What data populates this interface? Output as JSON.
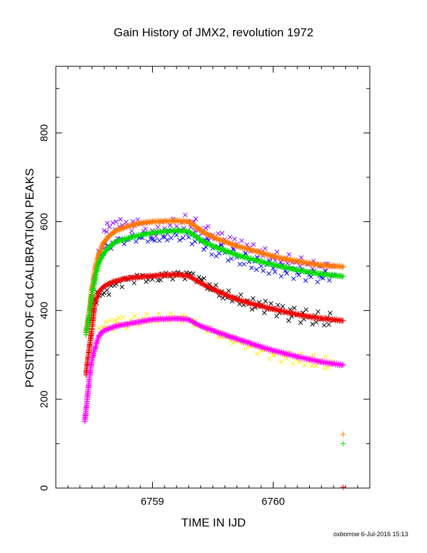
{
  "chart_data": {
    "type": "scatter",
    "title": "Gain History of JMX2, revolution 1972",
    "xlabel": "TIME IN IJD",
    "ylabel": "POSITION OF Cd CALIBRATION PEAKS",
    "xlim": [
      6758.2,
      6760.8
    ],
    "ylim": [
      0,
      950
    ],
    "x_ticks": [
      6759,
      6760
    ],
    "y_ticks": [
      0,
      200,
      400,
      600,
      800
    ],
    "grid": false,
    "legend": "none",
    "footer": "oxborrow  6-Jul-2016 15:13",
    "series": [
      {
        "color": "#ff7700",
        "marker": "plus",
        "style": "dense",
        "points": [
          [
            6758.45,
            350
          ],
          [
            6758.48,
            400
          ],
          [
            6758.5,
            450
          ],
          [
            6758.53,
            500
          ],
          [
            6758.56,
            530
          ],
          [
            6758.6,
            555
          ],
          [
            6758.65,
            570
          ],
          [
            6758.7,
            580
          ],
          [
            6758.8,
            590
          ],
          [
            6758.9,
            597
          ],
          [
            6759.0,
            600
          ],
          [
            6759.1,
            601
          ],
          [
            6759.2,
            602
          ],
          [
            6759.3,
            600
          ],
          [
            6759.35,
            590
          ],
          [
            6759.4,
            580
          ],
          [
            6759.5,
            565
          ],
          [
            6759.6,
            555
          ],
          [
            6759.7,
            545
          ],
          [
            6759.8,
            538
          ],
          [
            6759.9,
            530
          ],
          [
            6760.0,
            522
          ],
          [
            6760.1,
            516
          ],
          [
            6760.2,
            511
          ],
          [
            6760.3,
            506
          ],
          [
            6760.4,
            502
          ],
          [
            6760.5,
            500
          ],
          [
            6760.58,
            499
          ]
        ],
        "isolated": [
          [
            6760.58,
            121
          ]
        ]
      },
      {
        "color": "#00dd00",
        "marker": "plus",
        "style": "dense",
        "points": [
          [
            6758.45,
            345
          ],
          [
            6758.48,
            390
          ],
          [
            6758.5,
            435
          ],
          [
            6758.53,
            480
          ],
          [
            6758.56,
            510
          ],
          [
            6758.6,
            530
          ],
          [
            6758.65,
            545
          ],
          [
            6758.7,
            555
          ],
          [
            6758.8,
            563
          ],
          [
            6758.9,
            570
          ],
          [
            6759.0,
            575
          ],
          [
            6759.1,
            578
          ],
          [
            6759.2,
            580
          ],
          [
            6759.3,
            578
          ],
          [
            6759.35,
            568
          ],
          [
            6759.4,
            558
          ],
          [
            6759.5,
            545
          ],
          [
            6759.6,
            535
          ],
          [
            6759.7,
            525
          ],
          [
            6759.8,
            517
          ],
          [
            6759.9,
            510
          ],
          [
            6760.0,
            503
          ],
          [
            6760.1,
            497
          ],
          [
            6760.2,
            491
          ],
          [
            6760.3,
            486
          ],
          [
            6760.4,
            482
          ],
          [
            6760.5,
            479
          ],
          [
            6760.58,
            477
          ]
        ],
        "isolated": [
          [
            6760.58,
            100
          ]
        ]
      },
      {
        "color": "#ee0000",
        "marker": "plus",
        "style": "dense",
        "points": [
          [
            6758.45,
            255
          ],
          [
            6758.47,
            300
          ],
          [
            6758.5,
            360
          ],
          [
            6758.52,
            410
          ],
          [
            6758.55,
            440
          ],
          [
            6758.6,
            455
          ],
          [
            6758.65,
            462
          ],
          [
            6758.7,
            467
          ],
          [
            6758.8,
            473
          ],
          [
            6758.9,
            476
          ],
          [
            6759.0,
            478
          ],
          [
            6759.1,
            480
          ],
          [
            6759.2,
            481
          ],
          [
            6759.3,
            478
          ],
          [
            6759.35,
            470
          ],
          [
            6759.4,
            462
          ],
          [
            6759.5,
            448
          ],
          [
            6759.6,
            436
          ],
          [
            6759.7,
            425
          ],
          [
            6759.8,
            417
          ],
          [
            6759.9,
            410
          ],
          [
            6760.0,
            403
          ],
          [
            6760.1,
            397
          ],
          [
            6760.2,
            391
          ],
          [
            6760.3,
            386
          ],
          [
            6760.4,
            382
          ],
          [
            6760.5,
            379
          ],
          [
            6760.58,
            377
          ]
        ],
        "isolated": [
          [
            6760.58,
            2
          ]
        ]
      },
      {
        "color": "#ff00ff",
        "marker": "plus",
        "style": "dense",
        "points": [
          [
            6758.44,
            150
          ],
          [
            6758.46,
            200
          ],
          [
            6758.48,
            250
          ],
          [
            6758.5,
            290
          ],
          [
            6758.53,
            320
          ],
          [
            6758.56,
            345
          ],
          [
            6758.6,
            355
          ],
          [
            6758.7,
            365
          ],
          [
            6758.8,
            370
          ],
          [
            6758.9,
            375
          ],
          [
            6759.0,
            380
          ],
          [
            6759.1,
            381
          ],
          [
            6759.2,
            382
          ],
          [
            6759.3,
            380
          ],
          [
            6759.35,
            372
          ],
          [
            6759.4,
            365
          ],
          [
            6759.5,
            355
          ],
          [
            6759.6,
            345
          ],
          [
            6759.7,
            336
          ],
          [
            6759.8,
            327
          ],
          [
            6759.9,
            318
          ],
          [
            6760.0,
            310
          ],
          [
            6760.1,
            303
          ],
          [
            6760.2,
            296
          ],
          [
            6760.3,
            290
          ],
          [
            6760.4,
            284
          ],
          [
            6760.5,
            280
          ],
          [
            6760.58,
            277
          ]
        ]
      },
      {
        "color": "#8800ff",
        "marker": "x",
        "style": "scattered",
        "points": [
          [
            6758.6,
            580
          ],
          [
            6758.7,
            600
          ],
          [
            6758.8,
            590
          ],
          [
            6758.9,
            595
          ],
          [
            6759.0,
            580
          ],
          [
            6759.1,
            585
          ],
          [
            6759.2,
            590
          ],
          [
            6759.3,
            600
          ],
          [
            6759.4,
            585
          ],
          [
            6759.5,
            570
          ],
          [
            6759.6,
            560
          ],
          [
            6759.7,
            550
          ],
          [
            6759.8,
            540
          ],
          [
            6759.9,
            530
          ],
          [
            6760.0,
            520
          ],
          [
            6760.1,
            515
          ],
          [
            6760.2,
            510
          ],
          [
            6760.3,
            505
          ],
          [
            6760.4,
            500
          ],
          [
            6760.5,
            500
          ]
        ]
      },
      {
        "color": "#0000ee",
        "marker": "x",
        "style": "scattered",
        "points": [
          [
            6758.55,
            520
          ],
          [
            6758.6,
            540
          ],
          [
            6758.7,
            555
          ],
          [
            6758.8,
            560
          ],
          [
            6758.9,
            565
          ],
          [
            6759.0,
            560
          ],
          [
            6759.1,
            565
          ],
          [
            6759.2,
            570
          ],
          [
            6759.3,
            565
          ],
          [
            6759.4,
            555
          ],
          [
            6759.5,
            540
          ],
          [
            6759.6,
            530
          ],
          [
            6759.7,
            520
          ],
          [
            6759.8,
            510
          ],
          [
            6759.9,
            500
          ],
          [
            6760.0,
            495
          ],
          [
            6760.1,
            490
          ],
          [
            6760.2,
            485
          ],
          [
            6760.3,
            480
          ],
          [
            6760.4,
            475
          ],
          [
            6760.5,
            480
          ]
        ]
      },
      {
        "color": "#000000",
        "marker": "x",
        "style": "scattered",
        "points": [
          [
            6758.5,
            420
          ],
          [
            6758.6,
            440
          ],
          [
            6758.7,
            460
          ],
          [
            6758.8,
            470
          ],
          [
            6758.9,
            475
          ],
          [
            6759.0,
            470
          ],
          [
            6759.1,
            478
          ],
          [
            6759.2,
            480
          ],
          [
            6759.3,
            482
          ],
          [
            6759.4,
            470
          ],
          [
            6759.5,
            450
          ],
          [
            6759.6,
            435
          ],
          [
            6759.7,
            425
          ],
          [
            6759.8,
            415
          ],
          [
            6759.9,
            410
          ],
          [
            6760.0,
            405
          ],
          [
            6760.1,
            395
          ],
          [
            6760.2,
            390
          ],
          [
            6760.3,
            385
          ],
          [
            6760.4,
            380
          ],
          [
            6760.5,
            378
          ]
        ]
      },
      {
        "color": "#ffee00",
        "marker": "x",
        "style": "scattered",
        "points": [
          [
            6758.55,
            340
          ],
          [
            6758.6,
            360
          ],
          [
            6758.7,
            375
          ],
          [
            6758.8,
            372
          ],
          [
            6758.9,
            378
          ],
          [
            6759.0,
            380
          ],
          [
            6759.1,
            382
          ],
          [
            6759.2,
            385
          ],
          [
            6759.3,
            380
          ],
          [
            6759.4,
            365
          ],
          [
            6759.5,
            352
          ],
          [
            6759.6,
            340
          ],
          [
            6759.7,
            330
          ],
          [
            6759.8,
            320
          ],
          [
            6759.9,
            310
          ],
          [
            6760.0,
            300
          ],
          [
            6760.1,
            295
          ],
          [
            6760.2,
            290
          ],
          [
            6760.3,
            285
          ],
          [
            6760.4,
            282
          ],
          [
            6760.5,
            278
          ]
        ]
      }
    ]
  }
}
